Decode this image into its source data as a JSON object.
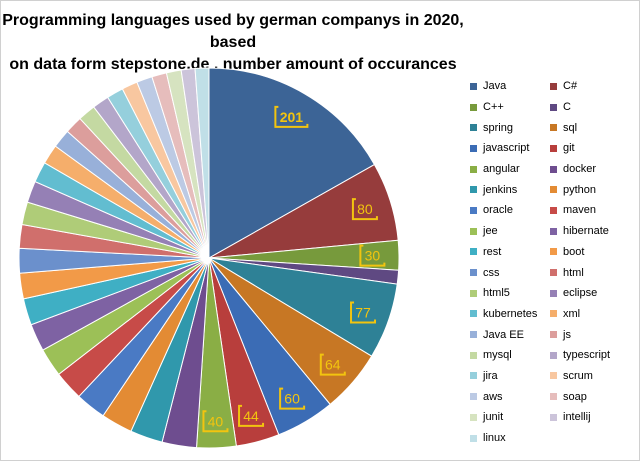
{
  "chart_data": {
    "type": "pie",
    "title": "Programming languages used by german companys in 2020, based on data form stepstone.de , number amount of occurances",
    "title_lines": [
      "Programming languages used by german companys in 2020, based",
      "on data form stepstone.de , number amount of occurances"
    ],
    "legend_position": "right",
    "slices": [
      {
        "label": "Java",
        "value": 201,
        "color": "#3C6496",
        "show_label": true
      },
      {
        "label": "C#",
        "value": 80,
        "color": "#963C3C",
        "show_label": true
      },
      {
        "label": "C++",
        "value": 30,
        "color": "#779A3C",
        "show_label": true
      },
      {
        "label": "C",
        "value": 14,
        "color": "#5F4982",
        "show_label": false
      },
      {
        "label": "spring",
        "value": 77,
        "color": "#2E8196",
        "show_label": true
      },
      {
        "label": "sql",
        "value": 64,
        "color": "#C77724",
        "show_label": true
      },
      {
        "label": "javascript",
        "value": 60,
        "color": "#3B6CB5",
        "show_label": true
      },
      {
        "label": "git",
        "value": 44,
        "color": "#B83E3C",
        "show_label": true
      },
      {
        "label": "angular",
        "value": 40,
        "color": "#8AAE45",
        "show_label": true
      },
      {
        "label": "docker",
        "value": 35,
        "color": "#6E4D8F",
        "show_label": false
      },
      {
        "label": "jenkins",
        "value": 33,
        "color": "#3098AC",
        "show_label": false
      },
      {
        "label": "python",
        "value": 32,
        "color": "#E38B34",
        "show_label": false
      },
      {
        "label": "oracle",
        "value": 31,
        "color": "#4A7AC4",
        "show_label": false
      },
      {
        "label": "maven",
        "value": 30,
        "color": "#C74B48",
        "show_label": false
      },
      {
        "label": "jee",
        "value": 29,
        "color": "#9CC057",
        "show_label": false
      },
      {
        "label": "hibernate",
        "value": 28,
        "color": "#7E62A3",
        "show_label": false
      },
      {
        "label": "rest",
        "value": 27,
        "color": "#3FAFC4",
        "show_label": false
      },
      {
        "label": "boot",
        "value": 26,
        "color": "#F29A48",
        "show_label": false
      },
      {
        "label": "css",
        "value": 25,
        "color": "#6B90CC",
        "show_label": false
      },
      {
        "label": "html",
        "value": 24,
        "color": "#D06F6C",
        "show_label": false
      },
      {
        "label": "html5",
        "value": 23,
        "color": "#AFCC78",
        "show_label": false
      },
      {
        "label": "eclipse",
        "value": 22,
        "color": "#9580B5",
        "show_label": false
      },
      {
        "label": "kubernetes",
        "value": 21,
        "color": "#62BDD0",
        "show_label": false
      },
      {
        "label": "xml",
        "value": 20,
        "color": "#F5AE6B",
        "show_label": false
      },
      {
        "label": "Java EE",
        "value": 19,
        "color": "#98B0D9",
        "show_label": false
      },
      {
        "label": "js",
        "value": 18,
        "color": "#DC9E9C",
        "show_label": false
      },
      {
        "label": "mysql",
        "value": 18,
        "color": "#C4D9A2",
        "show_label": false
      },
      {
        "label": "typescript",
        "value": 17,
        "color": "#B3A6C9",
        "show_label": false
      },
      {
        "label": "jira",
        "value": 17,
        "color": "#95CFDC",
        "show_label": false
      },
      {
        "label": "scrum",
        "value": 16,
        "color": "#F8C7A0",
        "show_label": false
      },
      {
        "label": "aws",
        "value": 16,
        "color": "#BCCAE4",
        "show_label": false
      },
      {
        "label": "soap",
        "value": 15,
        "color": "#E6BDBC",
        "show_label": false
      },
      {
        "label": "junit",
        "value": 15,
        "color": "#D6E3C0",
        "show_label": false
      },
      {
        "label": "intellij",
        "value": 14,
        "color": "#CCC4DA",
        "show_label": false
      },
      {
        "label": "linux",
        "value": 14,
        "color": "#C0DFE7",
        "show_label": false
      }
    ]
  }
}
